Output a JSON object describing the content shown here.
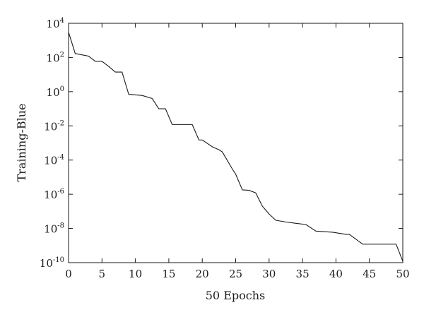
{
  "chart_data": {
    "type": "line",
    "title": "",
    "xlabel": "50 Epochs",
    "ylabel": "Training-Blue",
    "xlim": [
      0,
      50
    ],
    "ylim": [
      1e-10,
      10000
    ],
    "yscale": "log",
    "grid": false,
    "x_ticks": [
      0,
      5,
      10,
      15,
      20,
      25,
      30,
      35,
      40,
      45,
      50
    ],
    "y_ticks": [
      {
        "value": 1e-10,
        "base": "10",
        "exponent": "-10"
      },
      {
        "value": 1e-08,
        "base": "10",
        "exponent": "-8"
      },
      {
        "value": 1e-06,
        "base": "10",
        "exponent": "-6"
      },
      {
        "value": 0.0001,
        "base": "10",
        "exponent": "-4"
      },
      {
        "value": 0.01,
        "base": "10",
        "exponent": "-2"
      },
      {
        "value": 1,
        "base": "10",
        "exponent": "0"
      },
      {
        "value": 100,
        "base": "10",
        "exponent": "2"
      },
      {
        "value": 10000,
        "base": "10",
        "exponent": "4"
      }
    ],
    "series": [
      {
        "color": "#1a1a1a",
        "x": [
          0,
          1,
          3,
          4,
          5,
          6,
          7,
          8,
          9,
          11,
          12.5,
          13.5,
          14.5,
          15.5,
          18.5,
          19.5,
          20,
          21.5,
          22.5,
          23,
          24.5,
          25,
          26,
          27,
          28,
          29,
          30,
          31,
          32.5,
          34,
          35.5,
          37,
          39.5,
          41.5,
          42,
          44,
          46,
          49,
          50
        ],
        "y": [
          3000,
          170,
          120,
          60,
          60,
          30,
          14,
          14,
          0.7,
          0.6,
          0.4,
          0.1,
          0.1,
          0.012,
          0.012,
          0.0015,
          0.0015,
          0.0006,
          0.0004,
          0.0003,
          3e-05,
          1.5e-05,
          1.8e-06,
          1.7e-06,
          1.2e-06,
          2e-07,
          7e-08,
          3e-08,
          2.4e-08,
          2e-08,
          1.7e-08,
          7e-09,
          6e-09,
          4.5e-09,
          4.5e-09,
          1.2e-09,
          1.2e-09,
          1.2e-09,
          1.2e-10
        ]
      }
    ]
  }
}
